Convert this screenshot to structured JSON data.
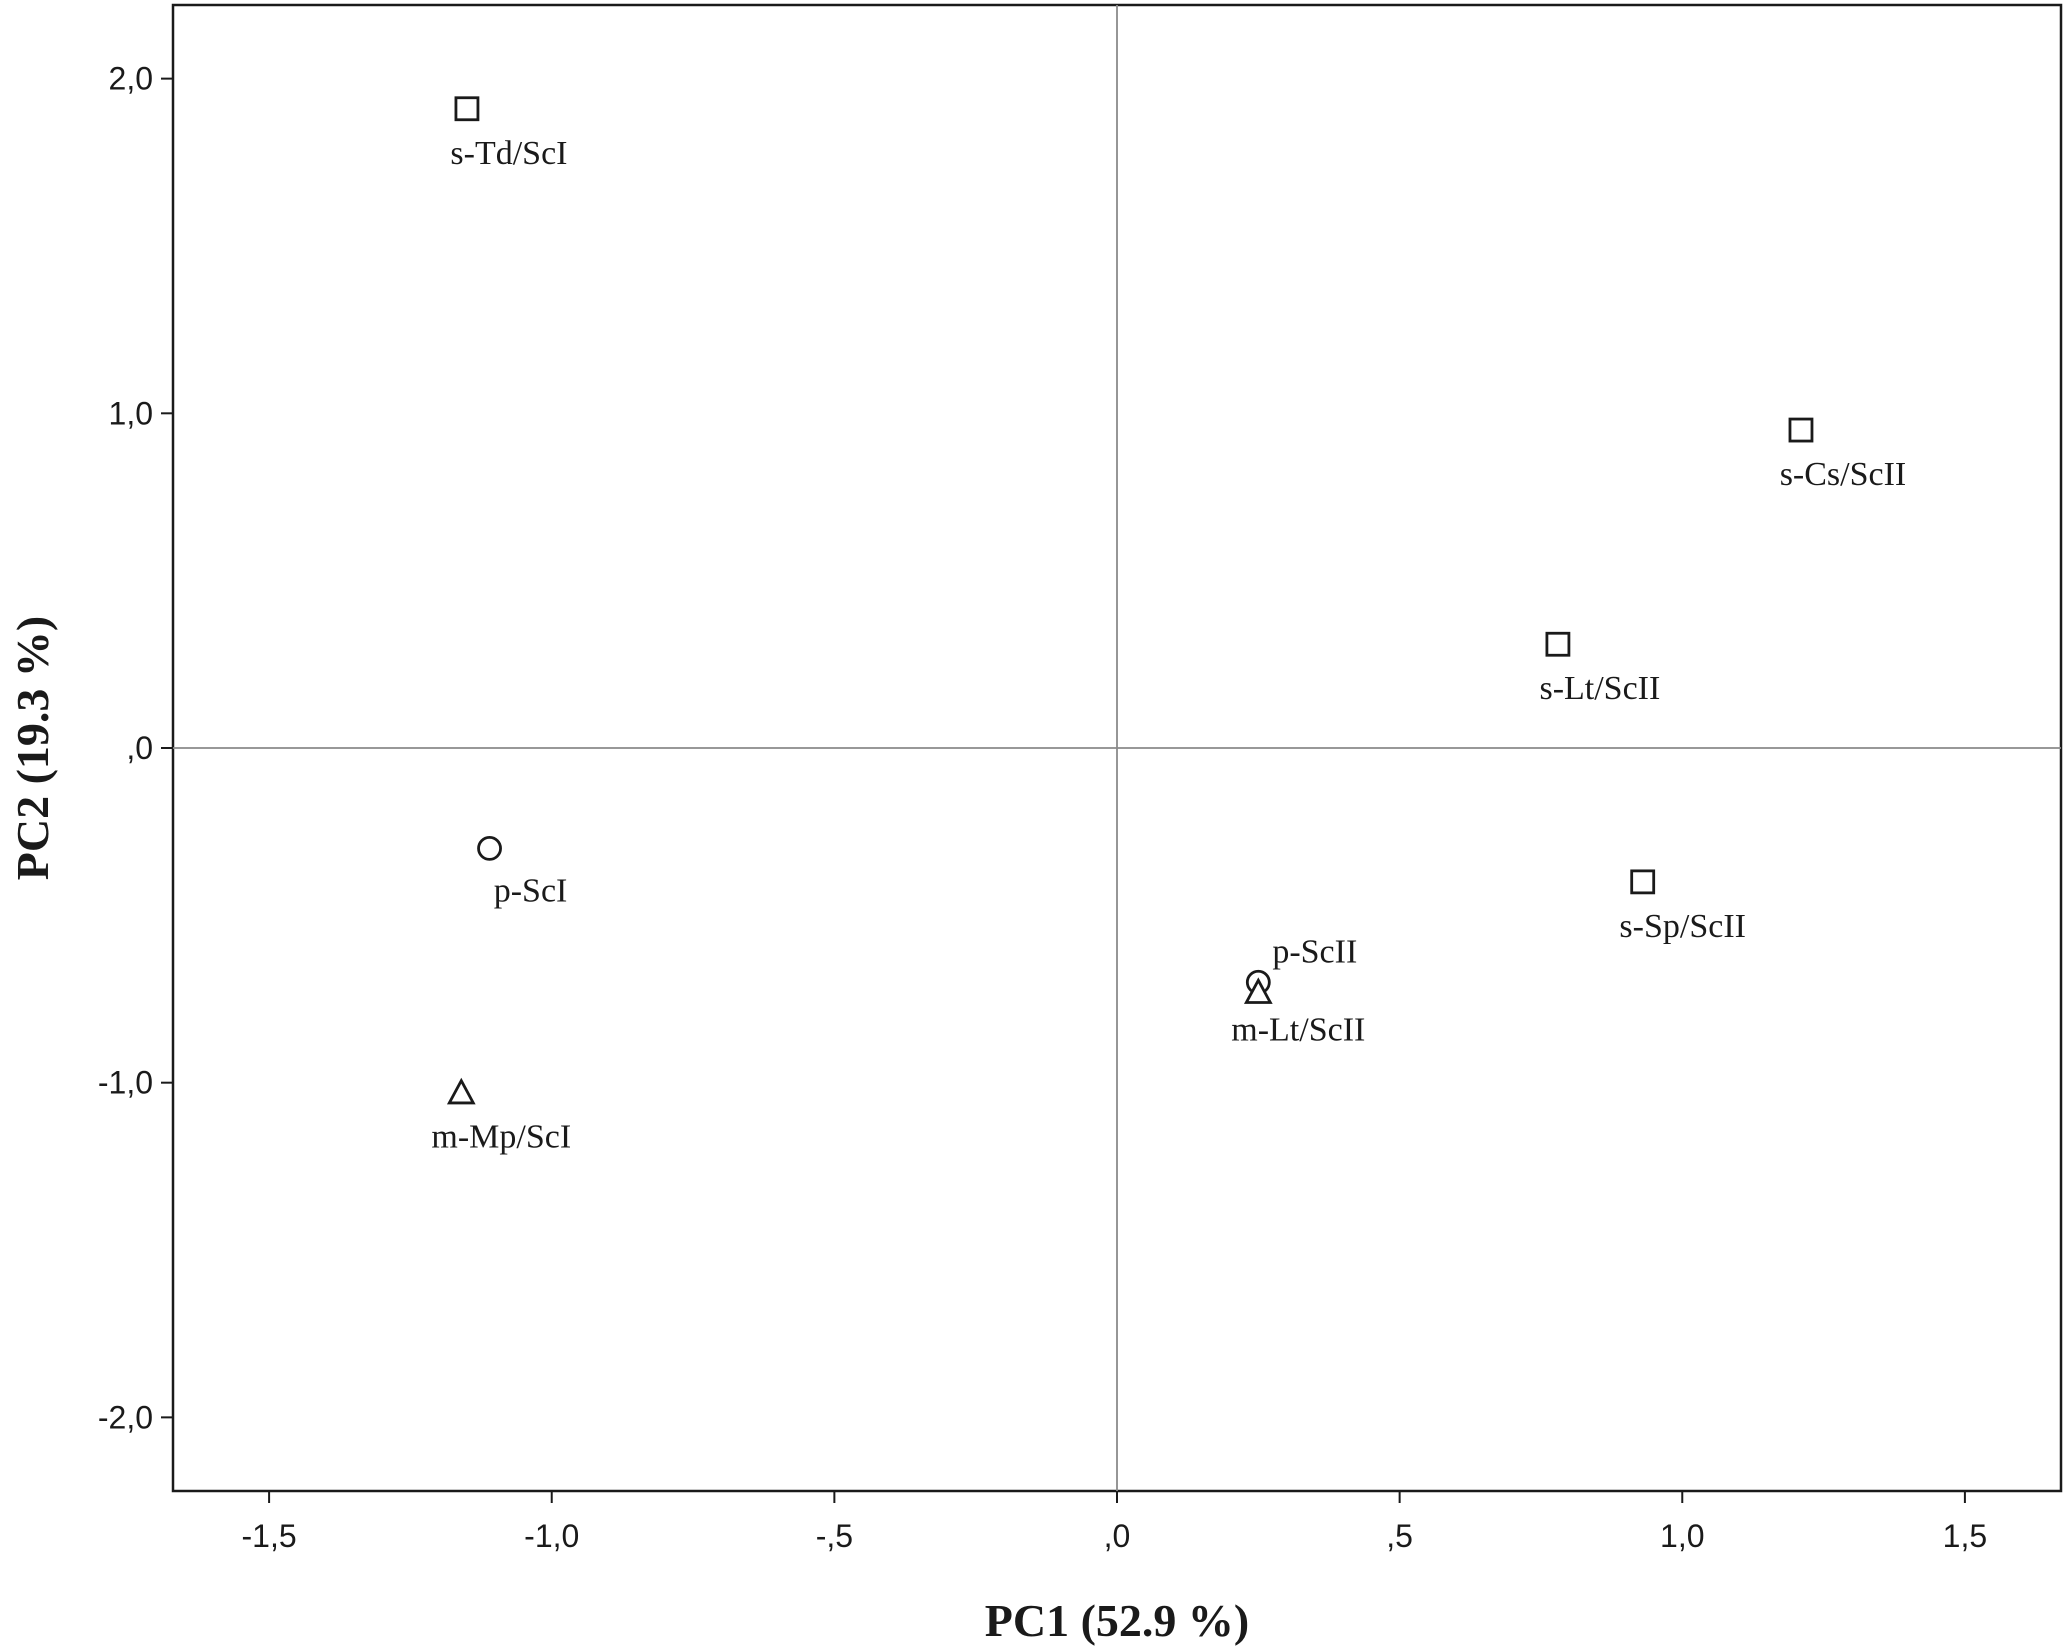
{
  "chart_data": {
    "type": "scatter",
    "xlabel": "PC1 (52.9 %)",
    "ylabel": "PC2 (19.3 %)",
    "xlim": [
      -1.67,
      1.67
    ],
    "ylim": [
      -2.22,
      2.22
    ],
    "x_ticks": [
      -1.5,
      -1.0,
      -0.5,
      0.0,
      0.5,
      1.0,
      1.5
    ],
    "x_tick_labels": [
      "-1,5",
      "-1,0",
      "-,5",
      ",0",
      ",5",
      "1,0",
      "1,5"
    ],
    "y_ticks": [
      2.0,
      1.0,
      0.0,
      -1.0,
      -2.0
    ],
    "y_tick_labels": [
      "2,0",
      "1,0",
      ",0",
      "-1,0",
      "-2,0"
    ],
    "reference_lines": {
      "x": 0.0,
      "y": 0.0
    },
    "grid": false,
    "legend": "none",
    "points": [
      {
        "label": "s-Td/ScI",
        "x": -1.15,
        "y": 1.91,
        "marker": "square"
      },
      {
        "label": "s-Cs/ScII",
        "x": 1.21,
        "y": 0.95,
        "marker": "square"
      },
      {
        "label": "s-Lt/ScII",
        "x": 0.78,
        "y": 0.31,
        "marker": "square"
      },
      {
        "label": "s-Sp/ScII",
        "x": 0.93,
        "y": -0.4,
        "marker": "square"
      },
      {
        "label": "p-ScI",
        "x": -1.11,
        "y": -0.3,
        "marker": "circle"
      },
      {
        "label": "p-ScII",
        "x": 0.25,
        "y": -0.7,
        "marker": "circle"
      },
      {
        "label": "m-Lt/ScII",
        "x": 0.25,
        "y": -0.73,
        "marker": "triangle"
      },
      {
        "label": "m-Mp/ScI",
        "x": -1.16,
        "y": -1.03,
        "marker": "triangle"
      }
    ]
  }
}
